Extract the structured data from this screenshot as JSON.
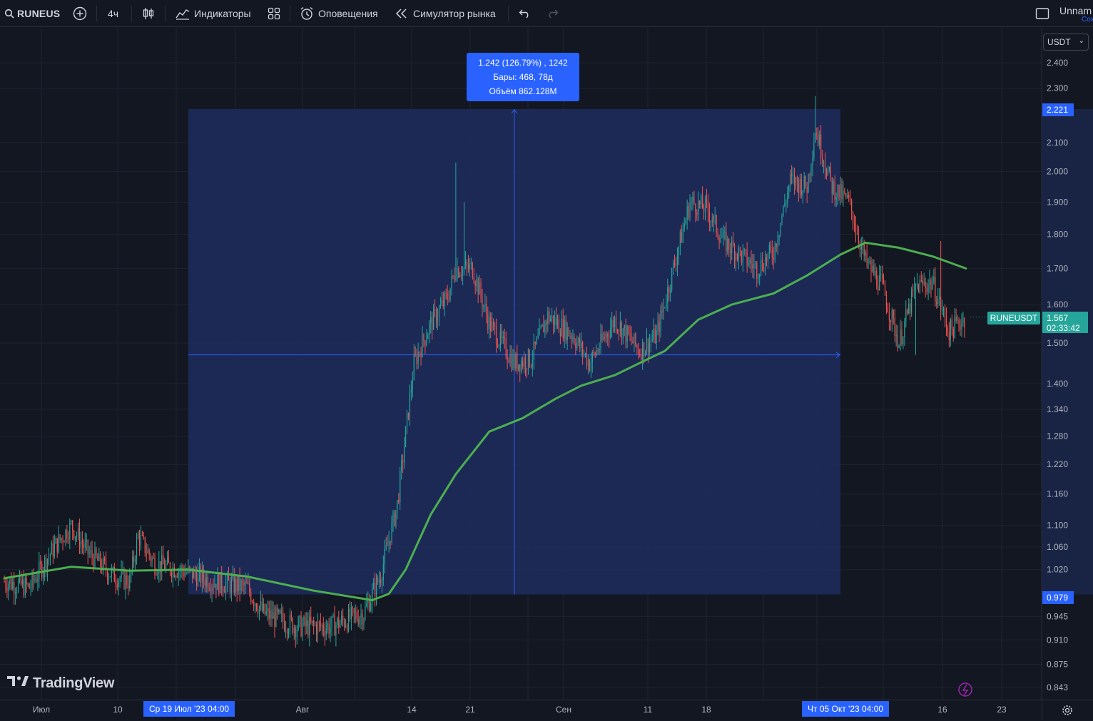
{
  "toolbar": {
    "symbol": "RUNEUS",
    "interval": "4ч",
    "indicators": "Индикаторы",
    "alerts": "Оповещения",
    "replay": "Симулятор рынка",
    "layout_name": "Unnam",
    "layout_status": "Сохран"
  },
  "price_axis": {
    "currency": "USDT",
    "ticks": [
      "2.400",
      "2.300",
      "2.100",
      "2.000",
      "1.900",
      "1.800",
      "1.700",
      "1.600",
      "1.500",
      "1.400",
      "1.340",
      "1.280",
      "1.220",
      "1.160",
      "1.100",
      "1.060",
      "1.020",
      "0.945",
      "0.910",
      "0.875",
      "0.843"
    ],
    "high_flag": "2.221",
    "low_flag": "0.979",
    "last_price": "1.567",
    "countdown": "02:33:42",
    "symbol_tag": "RUNEUSDT"
  },
  "measure": {
    "line1": "1.242 (126.79%) , 1242",
    "line2": "Бары: 468, 78д",
    "line3": "Объём 862.128M"
  },
  "time_axis": {
    "labels": [
      "Июл",
      "10",
      "Авг",
      "14",
      "21",
      "Сен",
      "11",
      "18",
      "16",
      "23"
    ],
    "start_flag": "Ср 19 Июл '23   04:00",
    "end_flag": "Чт 05 Окт '23   04:00"
  },
  "logo": "TradingView",
  "colors": {
    "background": "#131722",
    "up": "#26a69a",
    "down": "#ef5350",
    "ma": "#4caf50",
    "accent": "#2962ff",
    "range_fill": "#1e2d5e"
  },
  "chart_data": {
    "type": "candlestick",
    "symbol": "RUNEUSDT",
    "interval": "4ч",
    "y_scale": "log",
    "ylim": [
      0.82,
      2.45
    ],
    "x_range": [
      "2023-06-27",
      "2023-10-26"
    ],
    "grid": true,
    "measure_range": {
      "from_date": "2023-07-19",
      "to_date": "2023-10-05",
      "low": 0.979,
      "high": 2.221
    },
    "daily_close": [
      {
        "date": "2023-06-27",
        "close": 1.0
      },
      {
        "date": "2023-06-30",
        "close": 0.99
      },
      {
        "date": "2023-07-03",
        "close": 1.06
      },
      {
        "date": "2023-07-05",
        "close": 1.1
      },
      {
        "date": "2023-07-07",
        "close": 1.05
      },
      {
        "date": "2023-07-10",
        "close": 1.01
      },
      {
        "date": "2023-07-12",
        "close": 1.0
      },
      {
        "date": "2023-07-13",
        "close": 1.08
      },
      {
        "date": "2023-07-15",
        "close": 1.03
      },
      {
        "date": "2023-07-18",
        "close": 1.02
      },
      {
        "date": "2023-07-22",
        "close": 1.0
      },
      {
        "date": "2023-07-26",
        "close": 0.99
      },
      {
        "date": "2023-07-28",
        "close": 0.95
      },
      {
        "date": "2023-08-01",
        "close": 0.93
      },
      {
        "date": "2023-08-05",
        "close": 0.93
      },
      {
        "date": "2023-08-09",
        "close": 0.95
      },
      {
        "date": "2023-08-11",
        "close": 1.01
      },
      {
        "date": "2023-08-13",
        "close": 1.14
      },
      {
        "date": "2023-08-15",
        "close": 1.45
      },
      {
        "date": "2023-08-17",
        "close": 1.55
      },
      {
        "date": "2023-08-19",
        "close": 1.62
      },
      {
        "date": "2023-08-20",
        "close": 1.7
      },
      {
        "date": "2023-08-22",
        "close": 1.7
      },
      {
        "date": "2023-08-24",
        "close": 1.55
      },
      {
        "date": "2023-08-27",
        "close": 1.45
      },
      {
        "date": "2023-08-29",
        "close": 1.46
      },
      {
        "date": "2023-08-31",
        "close": 1.57
      },
      {
        "date": "2023-09-03",
        "close": 1.52
      },
      {
        "date": "2023-09-05",
        "close": 1.45
      },
      {
        "date": "2023-09-08",
        "close": 1.56
      },
      {
        "date": "2023-09-11",
        "close": 1.48
      },
      {
        "date": "2023-09-13",
        "close": 1.52
      },
      {
        "date": "2023-09-15",
        "close": 1.7
      },
      {
        "date": "2023-09-17",
        "close": 1.9
      },
      {
        "date": "2023-09-19",
        "close": 1.88
      },
      {
        "date": "2023-09-21",
        "close": 1.78
      },
      {
        "date": "2023-09-23",
        "close": 1.74
      },
      {
        "date": "2023-09-25",
        "close": 1.7
      },
      {
        "date": "2023-09-27",
        "close": 1.75
      },
      {
        "date": "2023-09-29",
        "close": 1.97
      },
      {
        "date": "2023-10-01",
        "close": 1.95
      },
      {
        "date": "2023-10-02",
        "close": 2.15
      },
      {
        "date": "2023-10-04",
        "close": 1.95
      },
      {
        "date": "2023-10-06",
        "close": 1.9
      },
      {
        "date": "2023-10-08",
        "close": 1.72
      },
      {
        "date": "2023-10-10",
        "close": 1.65
      },
      {
        "date": "2023-10-12",
        "close": 1.5
      },
      {
        "date": "2023-10-14",
        "close": 1.65
      },
      {
        "date": "2023-10-16",
        "close": 1.66
      },
      {
        "date": "2023-10-18",
        "close": 1.53
      },
      {
        "date": "2023-10-20",
        "close": 1.567
      }
    ],
    "ma_series": [
      {
        "date": "2023-06-27",
        "value": 1.005
      },
      {
        "date": "2023-07-05",
        "value": 1.025
      },
      {
        "date": "2023-07-12",
        "value": 1.018
      },
      {
        "date": "2023-07-19",
        "value": 1.02
      },
      {
        "date": "2023-07-26",
        "value": 1.008
      },
      {
        "date": "2023-08-03",
        "value": 0.985
      },
      {
        "date": "2023-08-10",
        "value": 0.97
      },
      {
        "date": "2023-08-12",
        "value": 0.98
      },
      {
        "date": "2023-08-14",
        "value": 1.02
      },
      {
        "date": "2023-08-17",
        "value": 1.12
      },
      {
        "date": "2023-08-20",
        "value": 1.2
      },
      {
        "date": "2023-08-24",
        "value": 1.29
      },
      {
        "date": "2023-08-28",
        "value": 1.32
      },
      {
        "date": "2023-09-01",
        "value": 1.365
      },
      {
        "date": "2023-09-04",
        "value": 1.395
      },
      {
        "date": "2023-09-08",
        "value": 1.42
      },
      {
        "date": "2023-09-12",
        "value": 1.46
      },
      {
        "date": "2023-09-14",
        "value": 1.48
      },
      {
        "date": "2023-09-18",
        "value": 1.56
      },
      {
        "date": "2023-09-22",
        "value": 1.6
      },
      {
        "date": "2023-09-27",
        "value": 1.63
      },
      {
        "date": "2023-10-01",
        "value": 1.68
      },
      {
        "date": "2023-10-05",
        "value": 1.74
      },
      {
        "date": "2023-10-08",
        "value": 1.775
      },
      {
        "date": "2023-10-12",
        "value": 1.76
      },
      {
        "date": "2023-10-16",
        "value": 1.735
      },
      {
        "date": "2023-10-20",
        "value": 1.7
      }
    ]
  }
}
